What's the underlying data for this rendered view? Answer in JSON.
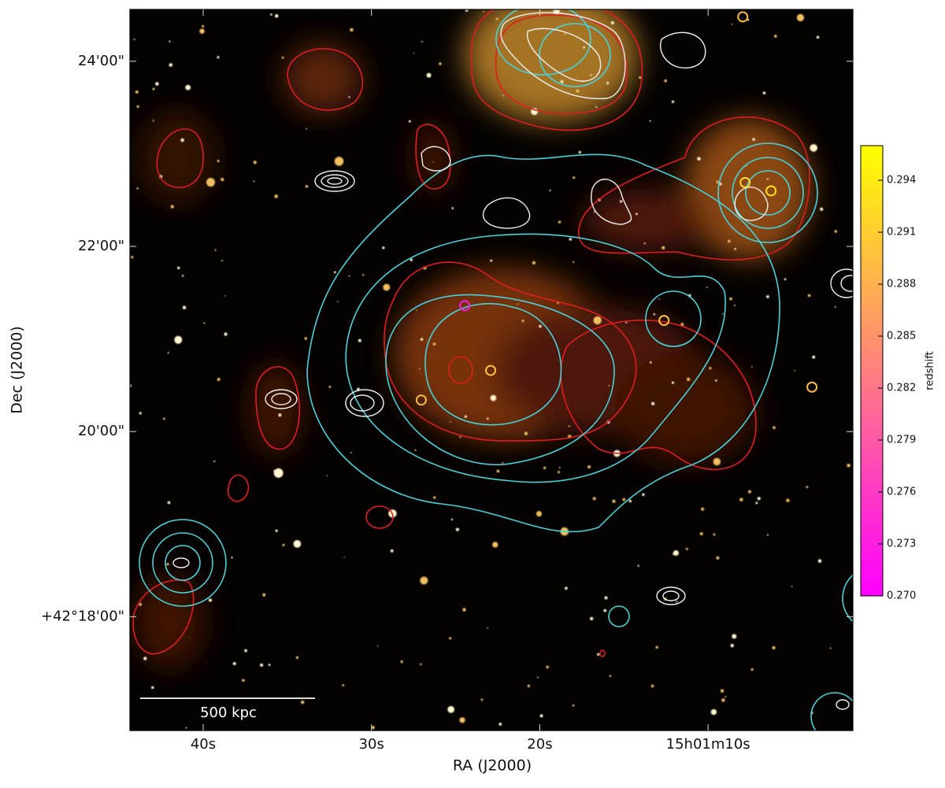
{
  "chart_data": {
    "type": "sky-image",
    "x_label": "RA (J2000)",
    "y_label": "Dec (J2000)",
    "xlim": [
      44.35,
      1.4
    ],
    "ylim": [
      16.77,
      24.56
    ],
    "xticks": [
      {
        "value": 40,
        "label": "40s"
      },
      {
        "value": 30,
        "label": "30s"
      },
      {
        "value": 20,
        "label": "20s"
      },
      {
        "value": 10,
        "label": "15h01m10s"
      }
    ],
    "yticks": [
      {
        "value": 18,
        "label": "+42°18'00\""
      },
      {
        "value": 20,
        "label": "20'00\""
      },
      {
        "value": 22,
        "label": "22'00\""
      },
      {
        "value": 24,
        "label": "24'00\""
      }
    ],
    "x": [
      24.46,
      22.92,
      27.04,
      12.62,
      7.8,
      6.26,
      3.83,
      7.94
    ],
    "y": [
      21.36,
      20.66,
      20.34,
      21.2,
      22.69,
      22.6,
      20.48,
      24.48
    ],
    "redshift": [
      0.2725,
      0.29,
      0.289,
      0.29,
      0.292,
      0.293,
      0.289,
      0.289
    ],
    "colorbar": {
      "label": "redshift",
      "clim": [
        0.27,
        0.296
      ],
      "colors": [
        "#ff00ff",
        "#ffff00"
      ],
      "ticks": [
        {
          "value": 0.27,
          "label": "0.270"
        },
        {
          "value": 0.273,
          "label": "0.273"
        },
        {
          "value": 0.276,
          "label": "0.276"
        },
        {
          "value": 0.279,
          "label": "0.279"
        },
        {
          "value": 0.282,
          "label": "0.282"
        },
        {
          "value": 0.285,
          "label": "0.285"
        },
        {
          "value": 0.288,
          "label": "0.288"
        },
        {
          "value": 0.291,
          "label": "0.291"
        },
        {
          "value": 0.294,
          "label": "0.294"
        }
      ]
    },
    "scale_bar_label": "500 kpc"
  }
}
